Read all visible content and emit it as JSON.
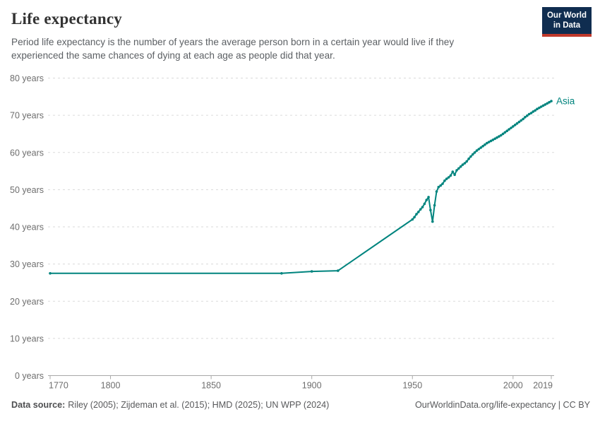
{
  "header": {
    "title": "Life expectancy",
    "subtitle": "Period life expectancy is the number of years the average person born in a certain year would live if they experienced the same chances of dying at each age as people did that year."
  },
  "logo": {
    "line1": "Our World",
    "line2": "in Data"
  },
  "chart_data": {
    "type": "line",
    "title": "Life expectancy",
    "unit_suffix": " years",
    "xlim": [
      1770,
      2019
    ],
    "ylim": [
      0,
      80
    ],
    "x_ticks": [
      1770,
      1800,
      1850,
      1900,
      1950,
      2000,
      2019
    ],
    "y_ticks": [
      0,
      10,
      20,
      30,
      40,
      50,
      60,
      70,
      80
    ],
    "grid": true,
    "legend_position": "end-of-line",
    "series": [
      {
        "name": "Asia",
        "color": "#00847e",
        "points": [
          [
            1770,
            27.5
          ],
          [
            1885,
            27.5
          ],
          [
            1900,
            28.0
          ],
          [
            1913,
            28.2
          ],
          [
            1950,
            42.0
          ],
          [
            1951,
            42.6
          ],
          [
            1952,
            43.4
          ],
          [
            1953,
            44.0
          ],
          [
            1954,
            44.7
          ],
          [
            1955,
            45.3
          ],
          [
            1956,
            46.2
          ],
          [
            1957,
            47.2
          ],
          [
            1958,
            48.0
          ],
          [
            1959,
            44.5
          ],
          [
            1960,
            41.4
          ],
          [
            1961,
            45.8
          ],
          [
            1962,
            49.5
          ],
          [
            1963,
            50.7
          ],
          [
            1964,
            51.1
          ],
          [
            1965,
            51.6
          ],
          [
            1966,
            52.4
          ],
          [
            1967,
            52.9
          ],
          [
            1968,
            53.3
          ],
          [
            1969,
            53.8
          ],
          [
            1970,
            54.8
          ],
          [
            1971,
            54.0
          ],
          [
            1972,
            55.2
          ],
          [
            1973,
            55.7
          ],
          [
            1974,
            56.2
          ],
          [
            1975,
            56.7
          ],
          [
            1976,
            57.1
          ],
          [
            1977,
            57.6
          ],
          [
            1978,
            58.3
          ],
          [
            1979,
            58.9
          ],
          [
            1980,
            59.5
          ],
          [
            1981,
            60.0
          ],
          [
            1982,
            60.5
          ],
          [
            1983,
            60.9
          ],
          [
            1984,
            61.3
          ],
          [
            1985,
            61.7
          ],
          [
            1986,
            62.1
          ],
          [
            1987,
            62.5
          ],
          [
            1988,
            62.8
          ],
          [
            1989,
            63.1
          ],
          [
            1990,
            63.4
          ],
          [
            1991,
            63.7
          ],
          [
            1992,
            64.0
          ],
          [
            1993,
            64.3
          ],
          [
            1994,
            64.6
          ],
          [
            1995,
            65.0
          ],
          [
            1996,
            65.4
          ],
          [
            1997,
            65.8
          ],
          [
            1998,
            66.2
          ],
          [
            1999,
            66.6
          ],
          [
            2000,
            67.0
          ],
          [
            2001,
            67.4
          ],
          [
            2002,
            67.8
          ],
          [
            2003,
            68.2
          ],
          [
            2004,
            68.6
          ],
          [
            2005,
            69.0
          ],
          [
            2006,
            69.5
          ],
          [
            2007,
            69.9
          ],
          [
            2008,
            70.3
          ],
          [
            2009,
            70.6
          ],
          [
            2010,
            71.0
          ],
          [
            2011,
            71.3
          ],
          [
            2012,
            71.7
          ],
          [
            2013,
            72.0
          ],
          [
            2014,
            72.3
          ],
          [
            2015,
            72.6
          ],
          [
            2016,
            72.9
          ],
          [
            2017,
            73.2
          ],
          [
            2018,
            73.5
          ],
          [
            2019,
            73.8
          ]
        ]
      }
    ]
  },
  "footer": {
    "source_label": "Data source:",
    "source_text": "Riley (2005); Zijdeman et al. (2015); HMD (2025); UN WPP (2024)",
    "link_text": "OurWorldinData.org/life-expectancy | CC BY"
  },
  "colors": {
    "series_teal": "#00847e",
    "grid": "#dadada",
    "axis": "#a8a8a8",
    "tick_text": "#6e6e6e",
    "logo_bg": "#102d50",
    "logo_stripe": "#c0392b"
  }
}
